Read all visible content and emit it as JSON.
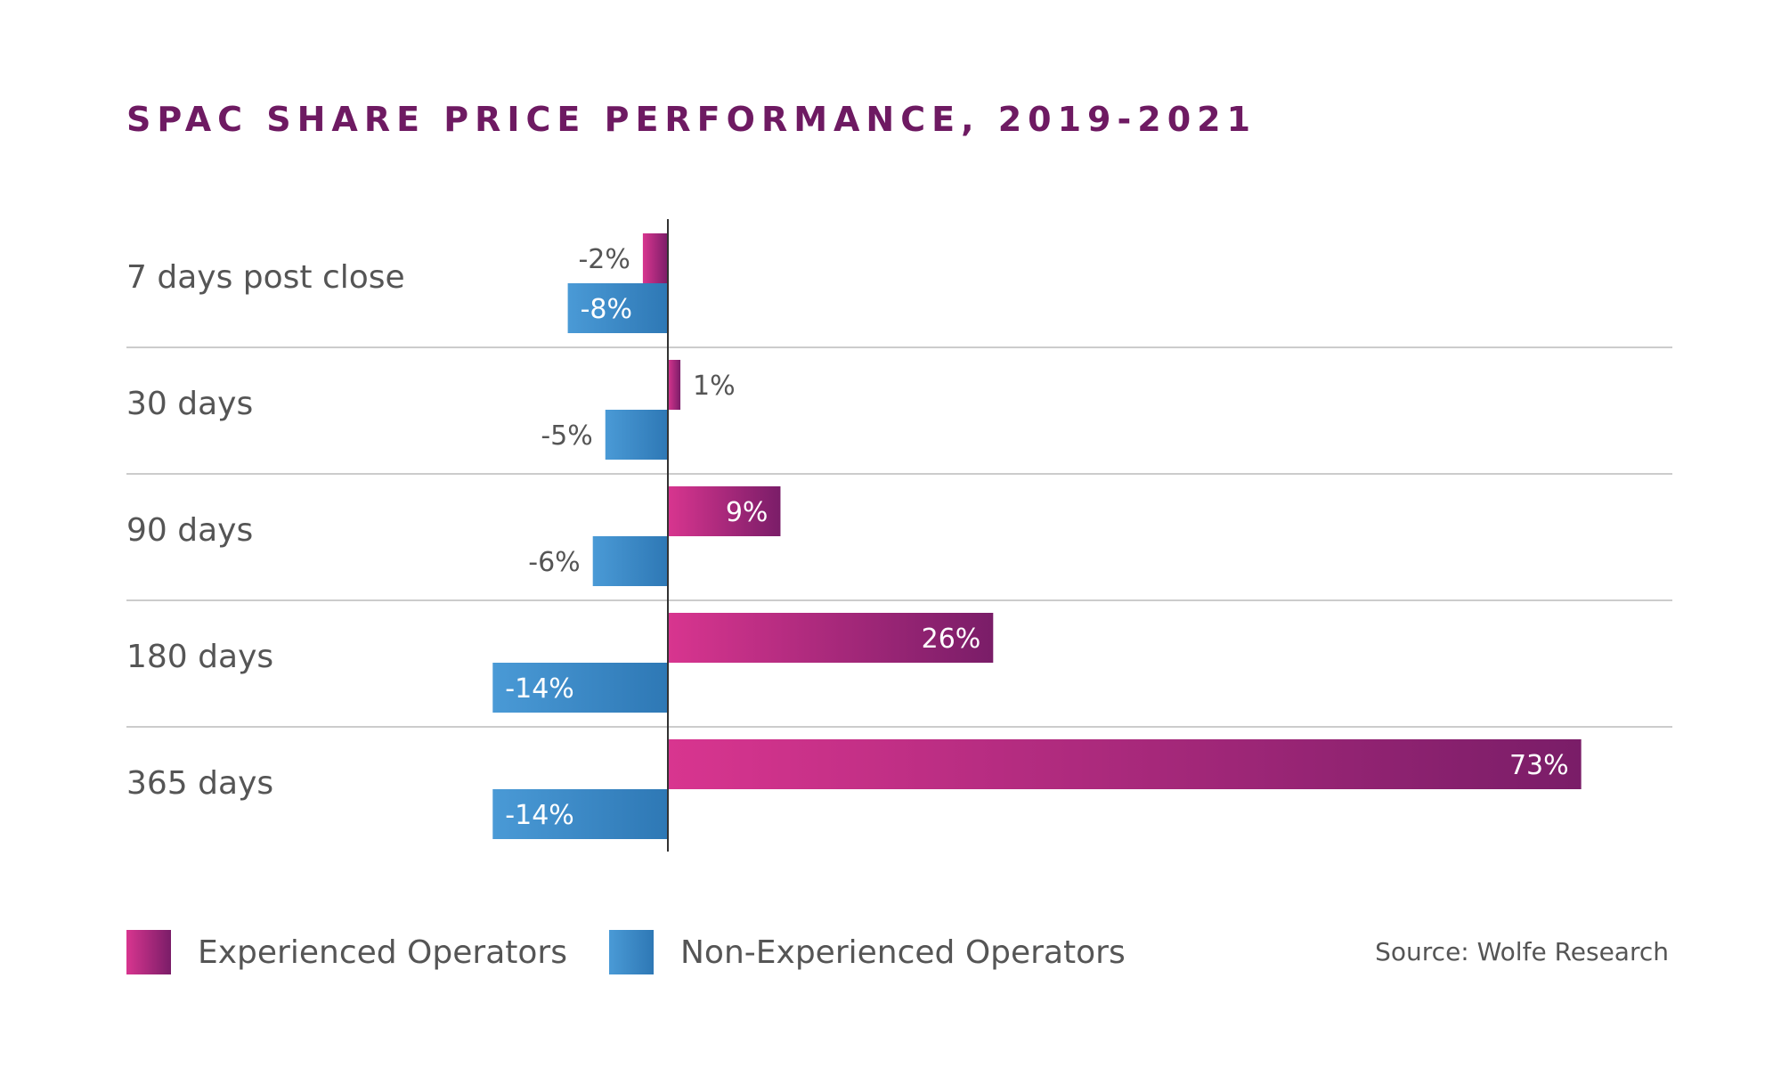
{
  "colors": {
    "experienced_start": "#d8358f",
    "experienced_end": "#7a1d68",
    "non_experienced_start": "#4a9ad6",
    "non_experienced_end": "#2e78b5",
    "title": "#6e1a62",
    "text": "#555555",
    "gridline": "#cccccc",
    "axis": "#333333"
  },
  "source": "Source: Wolfe Research",
  "chart_data": {
    "type": "bar",
    "orientation": "horizontal",
    "title": "SPAC SHARE PRICE PERFORMANCE, 2019-2021",
    "categories": [
      "7 days post close",
      "30 days",
      "90 days",
      "180 days",
      "365 days"
    ],
    "series": [
      {
        "name": "Experienced Operators",
        "values": [
          -2,
          1,
          9,
          26,
          73
        ],
        "labels": [
          "-2%",
          "1%",
          "9%",
          "26%",
          "73%"
        ]
      },
      {
        "name": "Non-Experienced Operators",
        "values": [
          -8,
          -5,
          -6,
          -14,
          -14
        ],
        "labels": [
          "-8%",
          "-5%",
          "-6%",
          "-14%",
          "-14%"
        ]
      }
    ],
    "unit": "%",
    "legend": "bottom-left"
  }
}
